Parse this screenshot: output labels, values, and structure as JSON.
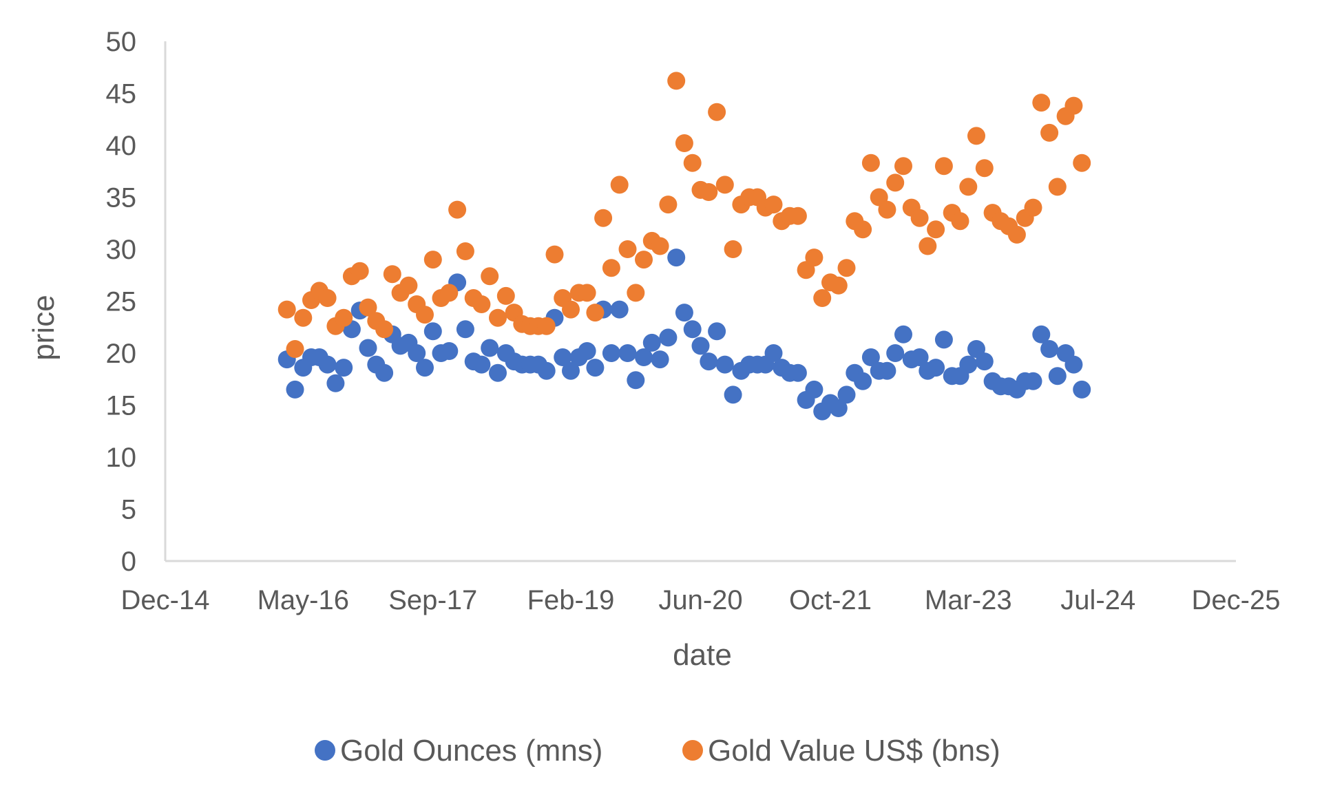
{
  "chart_data": {
    "type": "scatter",
    "title": "",
    "xlabel": "date",
    "ylabel": "price",
    "ylim": [
      0,
      50
    ],
    "yticks": [
      0,
      5,
      10,
      15,
      20,
      25,
      30,
      35,
      40,
      45,
      50
    ],
    "xlim": [
      "2014-12",
      "2025-12"
    ],
    "xticks": [
      {
        "date": "2014-12",
        "label": "Dec-14"
      },
      {
        "date": "2016-05",
        "label": "May-16"
      },
      {
        "date": "2017-09",
        "label": "Sep-17"
      },
      {
        "date": "2019-02",
        "label": "Feb-19"
      },
      {
        "date": "2020-06",
        "label": "Jun-20"
      },
      {
        "date": "2021-10",
        "label": "Oct-21"
      },
      {
        "date": "2023-03",
        "label": "Mar-23"
      },
      {
        "date": "2024-07",
        "label": "Jul-24"
      },
      {
        "date": "2025-12",
        "label": "Dec-25"
      }
    ],
    "grid": false,
    "legend_position": "bottom",
    "x": [
      "2016-03",
      "2016-04",
      "2016-05",
      "2016-06",
      "2016-07",
      "2016-08",
      "2016-09",
      "2016-10",
      "2016-11",
      "2016-12",
      "2017-01",
      "2017-02",
      "2017-03",
      "2017-04",
      "2017-05",
      "2017-06",
      "2017-07",
      "2017-08",
      "2017-09",
      "2017-10",
      "2017-11",
      "2017-12",
      "2018-01",
      "2018-02",
      "2018-03",
      "2018-04",
      "2018-05",
      "2018-06",
      "2018-07",
      "2018-08",
      "2018-09",
      "2018-10",
      "2018-11",
      "2018-12",
      "2019-01",
      "2019-02",
      "2019-03",
      "2019-04",
      "2019-05",
      "2019-06",
      "2019-07",
      "2019-08",
      "2019-09",
      "2019-10",
      "2019-11",
      "2019-12",
      "2020-01",
      "2020-02",
      "2020-03",
      "2020-04",
      "2020-05",
      "2020-06",
      "2020-07",
      "2020-08",
      "2020-09",
      "2020-10",
      "2020-11",
      "2020-12",
      "2021-01",
      "2021-02",
      "2021-03",
      "2021-04",
      "2021-05",
      "2021-06",
      "2021-07",
      "2021-08",
      "2021-09",
      "2021-10",
      "2021-11",
      "2021-12",
      "2022-01",
      "2022-02",
      "2022-03",
      "2022-04",
      "2022-05",
      "2022-06",
      "2022-07",
      "2022-08",
      "2022-09",
      "2022-10",
      "2022-11",
      "2022-12",
      "2023-01",
      "2023-02",
      "2023-03",
      "2023-04",
      "2023-05",
      "2023-06",
      "2023-07",
      "2023-08",
      "2023-09",
      "2023-10",
      "2023-11",
      "2023-12",
      "2024-01",
      "2024-02",
      "2024-03",
      "2024-04",
      "2024-05"
    ],
    "series": [
      {
        "name": "Gold Ounces (mns)",
        "color": "#4472C4",
        "values": [
          19.4,
          16.5,
          18.6,
          19.6,
          19.6,
          18.9,
          17.1,
          18.6,
          22.3,
          24.1,
          20.5,
          18.9,
          18.1,
          21.8,
          20.7,
          21.0,
          20.0,
          18.6,
          22.1,
          20.0,
          20.2,
          26.8,
          22.3,
          19.2,
          18.9,
          20.5,
          18.1,
          20.0,
          19.2,
          18.9,
          18.9,
          18.9,
          18.3,
          23.4,
          19.6,
          18.3,
          19.6,
          20.2,
          18.6,
          24.2,
          20.0,
          24.2,
          20.0,
          17.4,
          19.6,
          21.0,
          19.4,
          21.5,
          29.2,
          23.9,
          22.3,
          20.7,
          19.2,
          22.1,
          18.9,
          16.0,
          18.3,
          18.9,
          18.9,
          18.9,
          20.0,
          18.6,
          18.1,
          18.1,
          15.5,
          16.5,
          14.4,
          15.2,
          14.7,
          16.0,
          18.1,
          17.3,
          19.6,
          18.3,
          18.3,
          20.0,
          21.8,
          19.4,
          19.6,
          18.3,
          18.6,
          21.3,
          17.8,
          17.8,
          18.9,
          20.4,
          19.2,
          17.3,
          16.8,
          16.8,
          16.5,
          17.3,
          17.3,
          21.8,
          20.4,
          17.8,
          20.0,
          18.9,
          16.5
        ]
      },
      {
        "name": "Gold Value US$ (bns)",
        "color": "#ED7D31",
        "values": [
          24.2,
          20.4,
          23.4,
          25.1,
          26.0,
          25.3,
          22.6,
          23.4,
          27.4,
          27.9,
          24.4,
          23.1,
          22.3,
          27.6,
          25.8,
          26.5,
          24.7,
          23.7,
          29.0,
          25.3,
          25.8,
          33.8,
          29.8,
          25.3,
          24.7,
          27.4,
          23.4,
          25.5,
          23.9,
          22.8,
          22.6,
          22.6,
          22.6,
          29.5,
          25.3,
          24.2,
          25.8,
          25.8,
          23.9,
          33.0,
          28.2,
          36.2,
          30.0,
          25.8,
          29.0,
          30.8,
          30.3,
          34.3,
          46.2,
          40.2,
          38.3,
          35.7,
          35.5,
          43.2,
          36.2,
          30.0,
          34.3,
          35.0,
          35.0,
          34.0,
          34.3,
          32.7,
          33.2,
          33.2,
          28.0,
          29.2,
          25.3,
          26.8,
          26.5,
          28.2,
          32.7,
          31.9,
          38.3,
          35.0,
          33.8,
          36.4,
          38.0,
          34.0,
          33.0,
          30.3,
          31.9,
          38.0,
          33.5,
          32.7,
          36.0,
          40.9,
          37.8,
          33.5,
          32.7,
          32.2,
          31.4,
          33.0,
          34.0,
          44.1,
          41.2,
          36.0,
          42.8,
          43.8,
          38.3
        ]
      }
    ]
  }
}
